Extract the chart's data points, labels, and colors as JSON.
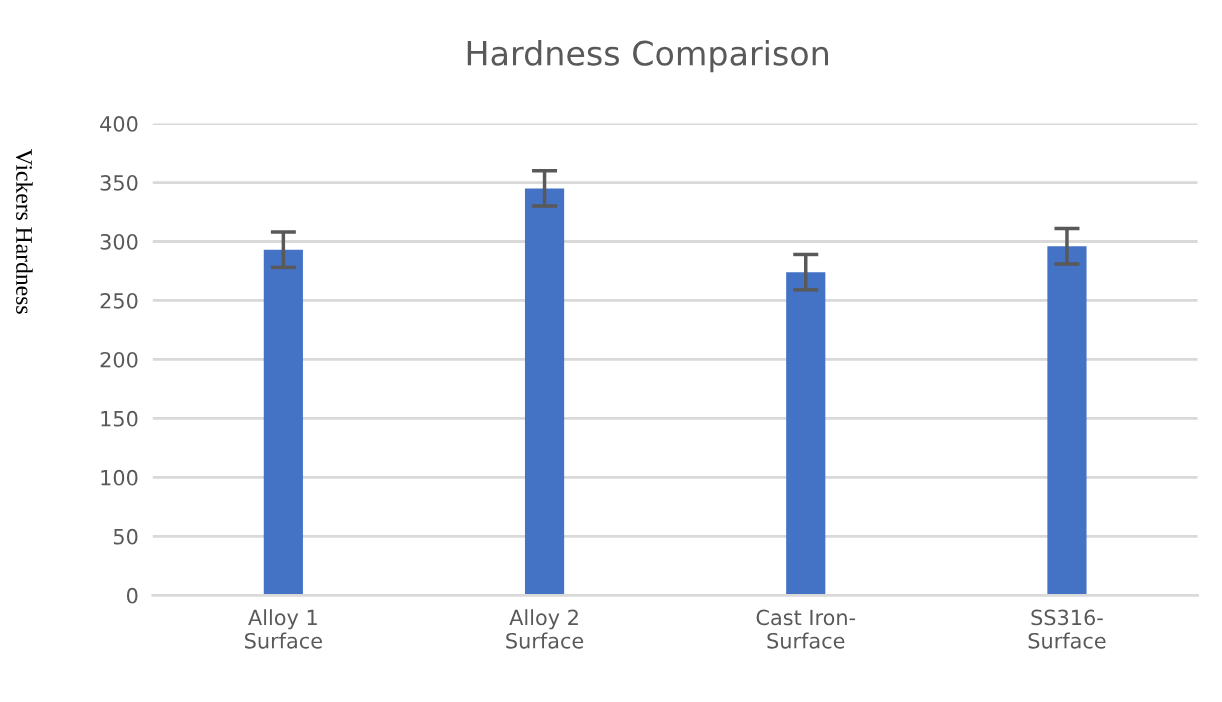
{
  "chart_data": {
    "type": "bar",
    "title": "Hardness Comparison",
    "ylabel": "Vickers Hardness",
    "categories": [
      "Alloy 1\nSurface",
      "Alloy 2\nSurface",
      "Cast Iron-\nSurface",
      "SS316-\nSurface"
    ],
    "values": [
      293,
      345,
      274,
      296
    ],
    "errors": [
      15,
      15,
      15,
      15
    ],
    "color": "#4472c4",
    "ylim": [
      0,
      400
    ],
    "yticks": [
      0,
      50,
      100,
      150,
      200,
      250,
      300,
      350,
      400
    ],
    "grid": "y",
    "legend": false
  }
}
